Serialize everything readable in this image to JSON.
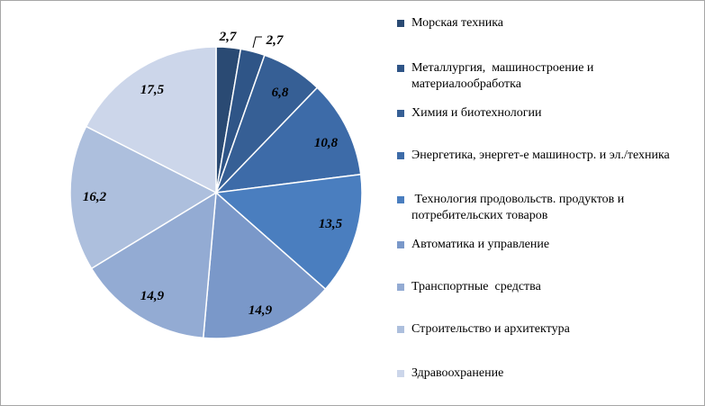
{
  "chart_data": {
    "type": "pie",
    "title": "",
    "legend_position": "right",
    "slices": [
      {
        "label": "Морская техника",
        "value": 2.7,
        "display": "2,7",
        "color": "#2a4a73"
      },
      {
        "label": "Металлургия,  машиностроение и материалообработка",
        "value": 2.7,
        "display": "2,7",
        "color": "#2f5587"
      },
      {
        "label": "Химия и биотехнологии",
        "value": 6.8,
        "display": "6,8",
        "color": "#365f95"
      },
      {
        "label": "Энергетика, энергет-е машиностр. и эл./техника",
        "value": 10.8,
        "display": "10,8",
        "color": "#3d6ba8"
      },
      {
        "label": " Технология продовольств. продуктов и потребительских товаров",
        "value": 13.5,
        "display": "13,5",
        "color": "#4a7ebf"
      },
      {
        "label": "Автоматика и управление",
        "value": 14.9,
        "display": "14,9",
        "color": "#7a98c9"
      },
      {
        "label": "Транспортные  средства",
        "value": 14.9,
        "display": "14,9",
        "color": "#93abd3"
      },
      {
        "label": "Строительство и архитектура",
        "value": 16.2,
        "display": "16,2",
        "color": "#adbfdd"
      },
      {
        "label": "Здравоохранение",
        "value": 17.5,
        "display": "17,5",
        "color": "#ccd6ea"
      }
    ]
  }
}
